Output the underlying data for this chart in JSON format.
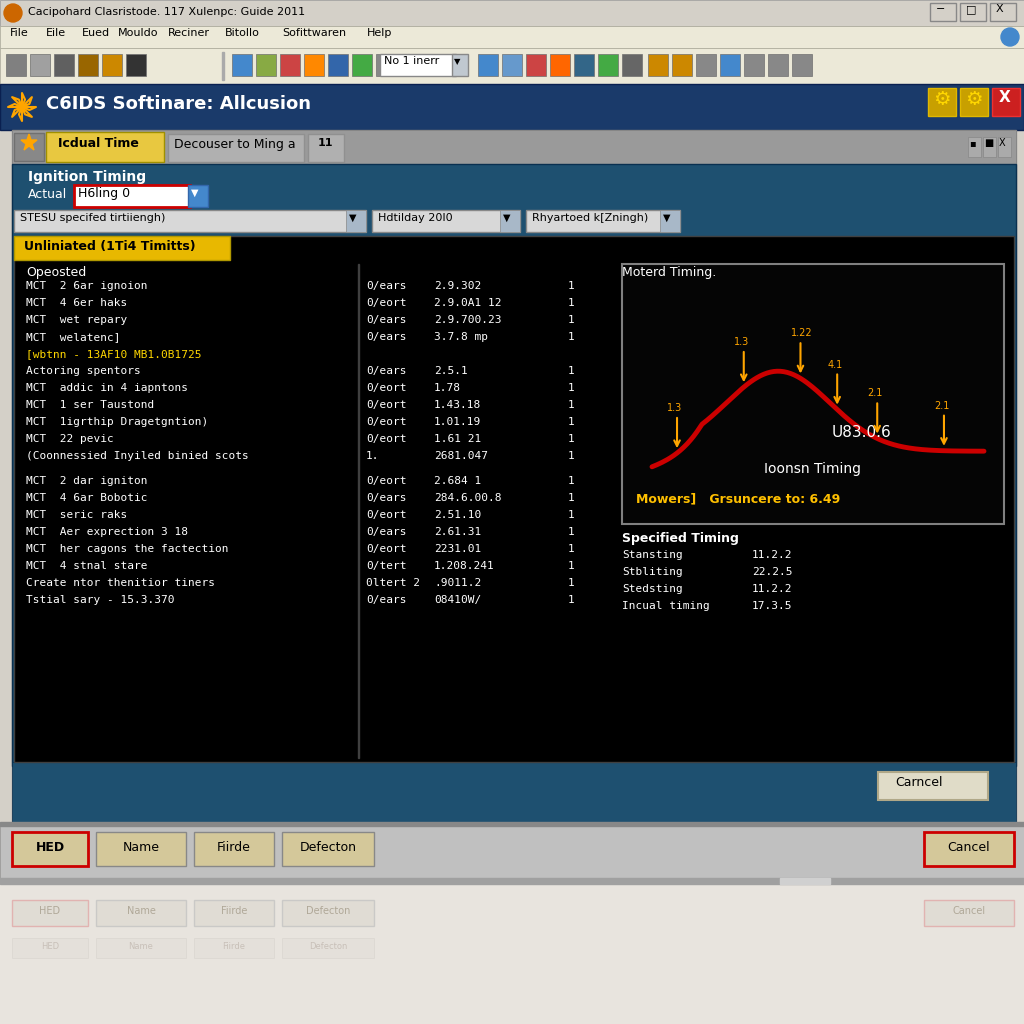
{
  "title_bar": "Cacipohard Clasristode. 117 Xulenpc: Guide 2011",
  "app_title": "C6IDS Softinare: Allcusion",
  "tab1": "Icdual Time",
  "tab2": "Decouser to Ming a",
  "tab3": "11",
  "section_title": "Ignition Timing",
  "actual_label": "Actual",
  "actual_value": "H6ling 0",
  "dropdown1": "STESU specifed tirtiiengh)",
  "dropdown2": "Hdtilday 20I0",
  "dropdown3": "Rhyartoed k[Zningh)",
  "tab_content": "Unliniated (1Ti4 Timitts)",
  "menu_items": [
    "File",
    "Eile",
    "Eued",
    "Mouldo",
    "Reciner",
    "Bitollo",
    "Sofittwaren",
    "Help"
  ],
  "col1_header": "Opeosted",
  "data_rows_top": [
    [
      "MCT  2 6ar ignoion",
      "0/ears",
      "2.9.302",
      "1"
    ],
    [
      "MCT  4 6er haks",
      "0/eort",
      "2.9.0A1 12",
      "1"
    ],
    [
      "MCT  wet repary",
      "0/ears",
      "2.9.700.23",
      "1"
    ],
    [
      "MCT  welatenc]",
      "0/ears",
      "3.7.8 mp",
      "1"
    ]
  ],
  "highlight_row": "[wbtnn - 13AF10 MB1.0B1725",
  "data_rows_mid": [
    [
      "Actoring spentors",
      "0/ears",
      "2.5.1",
      "1"
    ],
    [
      "MCT  addic in 4 iapntons",
      "0/eort",
      "1.78",
      "1"
    ],
    [
      "MCT  1 ser Taustond",
      "0/eort",
      "1.43.18",
      "1"
    ],
    [
      "MCT  1igrthip Dragetgntion)",
      "0/eort",
      "1.01.19",
      "1"
    ],
    [
      "MCT  22 pevic",
      "0/eort",
      "1.61 21",
      "1"
    ],
    [
      "(Coonnessied Inyiled binied scots",
      "1.",
      "2681.047",
      "1"
    ]
  ],
  "data_rows_bot": [
    [
      "MCT  2 dar igniton",
      "0/eort",
      "2.684 1",
      "1"
    ],
    [
      "MCT  4 6ar Bobotic",
      "0/ears",
      "284.6.00.8",
      "1"
    ],
    [
      "MCT  seric raks",
      "0/eort",
      "2.51.10",
      "1"
    ],
    [
      "MCT  Aer exprection 3 18",
      "0/ears",
      "2.61.31",
      "1"
    ],
    [
      "MCT  her cagons the factection",
      "0/eort",
      "2231.01",
      "1"
    ],
    [
      "MCT  4 stnal stare",
      "0/tert",
      "1.208.241",
      "1"
    ],
    [
      "Create ntor thenitior tiners",
      "0ltert 2",
      ".9011.2",
      "1"
    ],
    [
      "Tstial sary - 15.3.370",
      "0/ears",
      "08410W/",
      "1"
    ]
  ],
  "gauge_title": "Moterd Timing.",
  "gauge_value": "U83.0.6",
  "gauge_subtitle": "Ioonsn Timing",
  "gauge_bottom": "Mowers]   Grsuncere to: 6.49",
  "arrow_labels": [
    "1.3",
    "1.3",
    "1.22",
    "4.1",
    "2.1",
    "2.1"
  ],
  "specified_title": "Specified Timing",
  "specified_rows": [
    [
      "Stansting",
      "11.2.2"
    ],
    [
      "Stbliting",
      "22.2.5"
    ],
    [
      "Stedsting",
      "11.2.2"
    ],
    [
      "Incual timing",
      "17.3.5"
    ]
  ],
  "buttons_bottom": [
    "HED",
    "Name",
    "Fiirde",
    "Defecton"
  ],
  "cancel_btn": "Cancel",
  "carncel_btn": "Carncel",
  "bg_titlebar": "#d4d0c8",
  "bg_blue_dark": "#1a3a6a",
  "bg_blue_mid": "#1e4d7a",
  "bg_blue_light": "#2a5a8a",
  "bg_black": "#000000",
  "bg_tab_active": "#e8c840",
  "bg_gray_panel": "#c0c0c0",
  "bg_gray_light": "#d8d8d8",
  "text_white": "#ffffff",
  "text_yellow": "#ffc000",
  "text_black": "#000000",
  "highlight_yellow": "#e8b800",
  "col_vert_line": "#555555",
  "btn_tan": "#d4c89a"
}
